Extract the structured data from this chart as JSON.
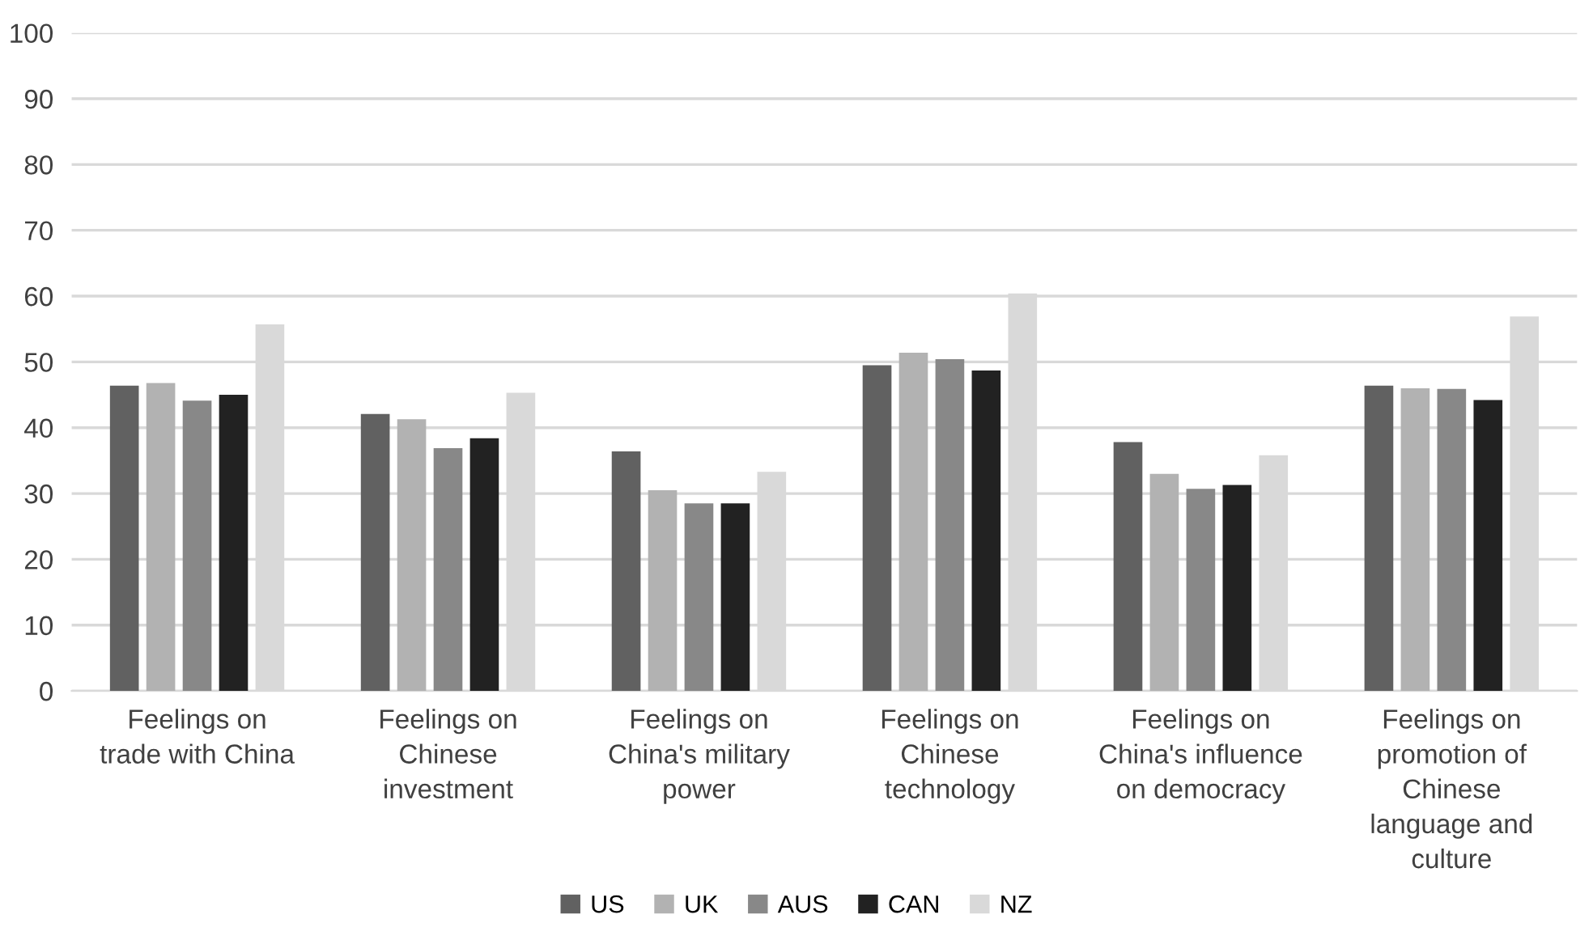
{
  "chart_data": {
    "type": "bar",
    "categories": [
      "Feelings on trade with China",
      "Feelings on Chinese investment",
      "Feelings on China's military power",
      "Feelings on Chinese technology",
      "Feelings on China's influence on democracy",
      "Feelings on promotion of Chinese language and culture"
    ],
    "series": [
      {
        "name": "US",
        "color": "#616161",
        "values": [
          46.4,
          42.1,
          36.4,
          49.5,
          37.8,
          46.4
        ]
      },
      {
        "name": "UK",
        "color": "#b2b2b2",
        "values": [
          46.8,
          41.3,
          30.5,
          51.4,
          33.0,
          46.0
        ]
      },
      {
        "name": "AUS",
        "color": "#888888",
        "values": [
          44.1,
          36.9,
          28.5,
          50.4,
          30.7,
          45.9
        ]
      },
      {
        "name": "CAN",
        "color": "#222222",
        "values": [
          45.0,
          38.4,
          28.5,
          48.7,
          31.3,
          44.2
        ]
      },
      {
        "name": "NZ",
        "color": "#d9d9d9",
        "values": [
          55.7,
          45.3,
          33.3,
          60.4,
          35.8,
          56.9
        ]
      }
    ],
    "ylim": [
      0,
      100
    ],
    "yticks": [
      0,
      10,
      20,
      30,
      40,
      50,
      60,
      70,
      80,
      90,
      100
    ],
    "grid": "y",
    "legend": "bottom"
  }
}
